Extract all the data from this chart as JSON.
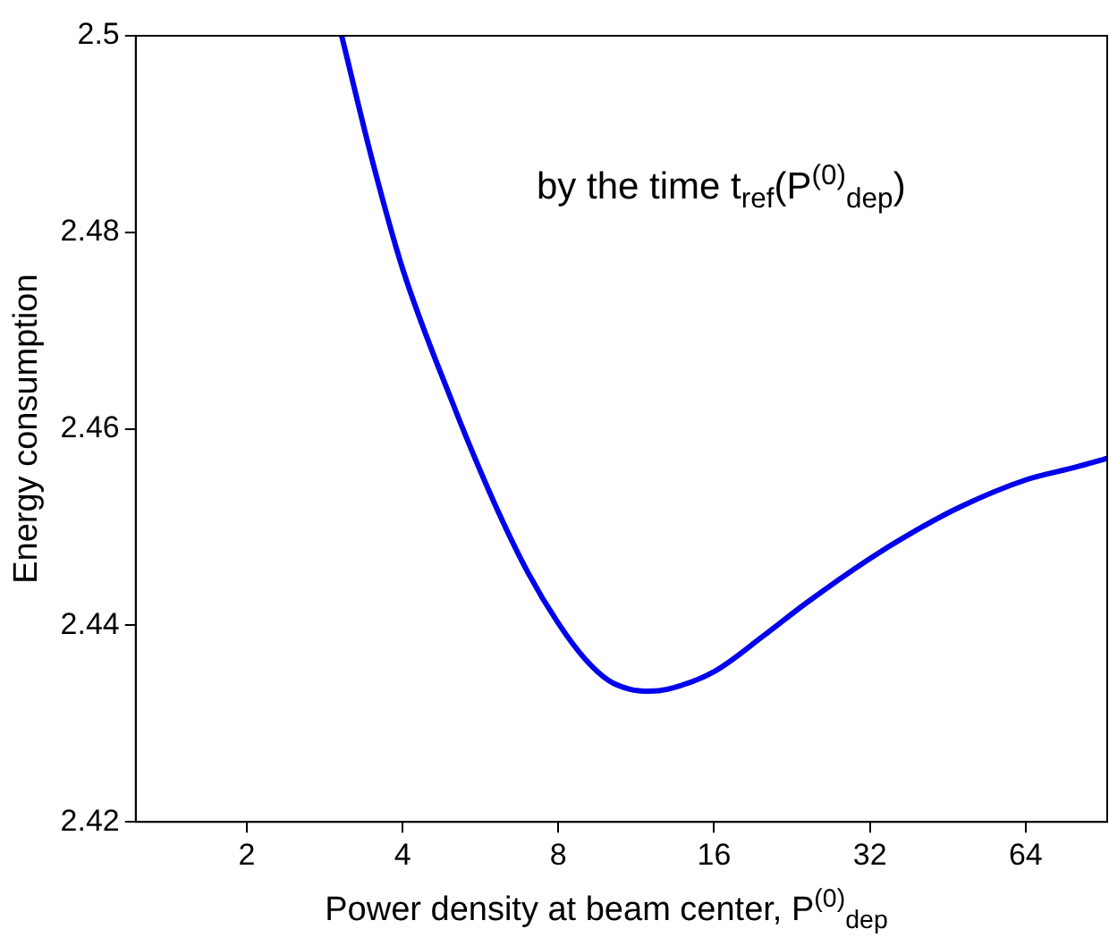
{
  "chart_data": {
    "type": "line",
    "xlabel": "Power density at beam center, P$^{(0)}$$_{dep}$",
    "ylabel": "Energy consumption",
    "annotations": [
      "by the time t$_{ref}$(P$^{(0)}$$_{dep}$)"
    ],
    "log": "x",
    "grid": false,
    "legend": false,
    "marker": "none",
    "line_style": "solid",
    "xlim": [
      1.22,
      92
    ],
    "xticks": [
      2,
      4,
      8,
      16,
      32,
      64
    ],
    "ylim": [
      2.42,
      2.5
    ],
    "yticks": [
      2.42,
      2.44,
      2.46,
      2.48,
      2.5
    ],
    "x": [
      3.05,
      3.5,
      4,
      5,
      6,
      7,
      8,
      9,
      10,
      11,
      12,
      13,
      16,
      20,
      24,
      32,
      40,
      48,
      64,
      80,
      92
    ],
    "series": [
      {
        "color": "#0000ee",
        "values": [
          2.5,
          2.4872,
          2.4763,
          2.4626,
          2.4526,
          2.4453,
          2.4402,
          2.4366,
          2.4344,
          2.4335,
          2.4333,
          2.4335,
          2.4353,
          2.439,
          2.4422,
          2.4468,
          2.4499,
          2.4521,
          2.4548,
          2.4561,
          2.457
        ]
      }
    ]
  }
}
